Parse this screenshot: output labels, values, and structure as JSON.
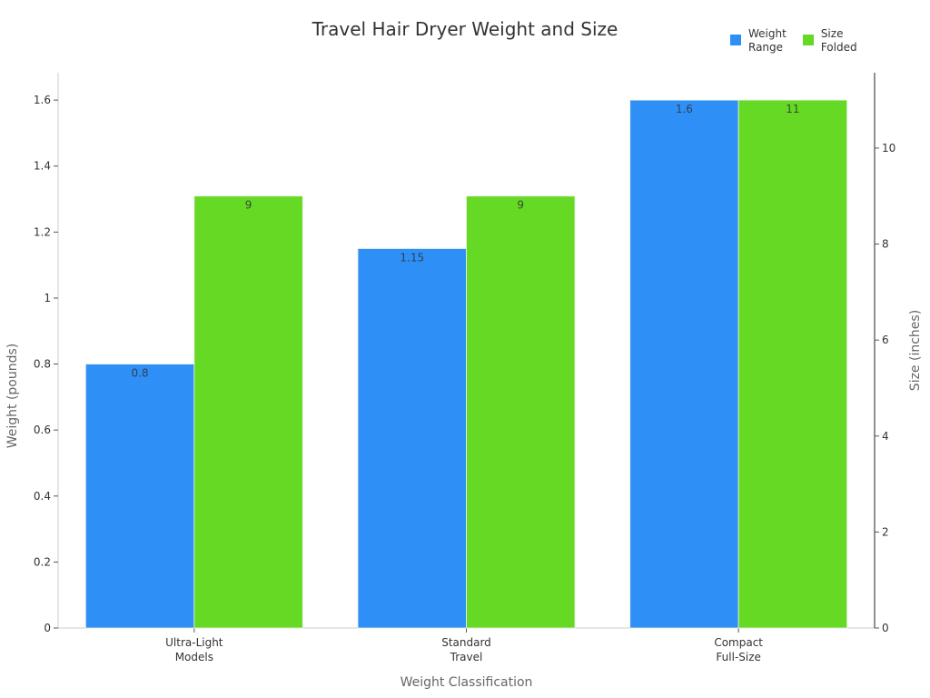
{
  "chart": {
    "title": "Travel Hair Dryer Weight and Size",
    "xlabel": "Weight Classification",
    "ylabel_left": "Weight (pounds)",
    "ylabel_right": "Size (inches)",
    "legend": [
      {
        "label": "Weight\nRange",
        "color": "#2e90f7"
      },
      {
        "label": "Size\nFolded",
        "color": "#66d925"
      }
    ]
  },
  "chart_data": {
    "type": "bar",
    "title": "Travel Hair Dryer Weight and Size",
    "xlabel": "Weight Classification",
    "categories": [
      "Ultra-Light Models",
      "Standard Travel",
      "Compact Full-Size"
    ],
    "category_lines": [
      [
        "Ultra-Light",
        "Models"
      ],
      [
        "Standard",
        "Travel"
      ],
      [
        "Compact",
        "Full-Size"
      ]
    ],
    "series": [
      {
        "name": "Weight Range",
        "axis": "left",
        "color": "#2e90f7",
        "values": [
          0.8,
          1.15,
          1.6
        ],
        "labels": [
          "0.8",
          "1.15",
          "1.6"
        ]
      },
      {
        "name": "Size Folded",
        "axis": "right",
        "color": "#66d925",
        "values": [
          9,
          9,
          11
        ],
        "labels": [
          "9",
          "9",
          "11"
        ]
      }
    ],
    "y_left": {
      "label": "Weight (pounds)",
      "range": [
        0,
        1.683
      ],
      "ticks": [
        0,
        0.2,
        0.4,
        0.6,
        0.8,
        1,
        1.2,
        1.4,
        1.6
      ],
      "tick_labels": [
        "0",
        "0.2",
        "0.4",
        "0.6",
        "0.8",
        "1",
        "1.2",
        "1.4",
        "1.6"
      ]
    },
    "y_right": {
      "label": "Size (inches)",
      "range": [
        0,
        11.57
      ],
      "ticks": [
        0,
        2,
        4,
        6,
        8,
        10
      ],
      "tick_labels": [
        "0",
        "2",
        "4",
        "6",
        "8",
        "10"
      ]
    },
    "grid": false,
    "legend_position": "top-right"
  }
}
